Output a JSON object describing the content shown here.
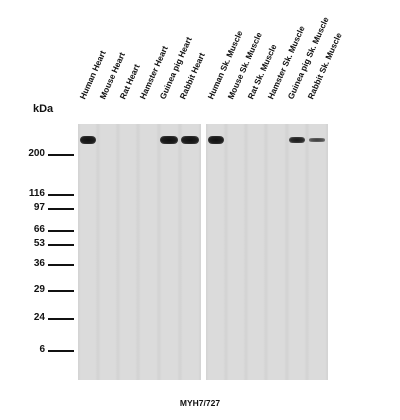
{
  "blot": {
    "lanes": [
      {
        "label": "Human Heart",
        "panel": 1,
        "band": "strong"
      },
      {
        "label": "Mouse Heart",
        "panel": 1,
        "band": "none"
      },
      {
        "label": "Rat Heart",
        "panel": 1,
        "band": "none"
      },
      {
        "label": "Hamster Heart",
        "panel": 1,
        "band": "none"
      },
      {
        "label": "Guinea pig Heart",
        "panel": 1,
        "band": "strong"
      },
      {
        "label": "Rabbit Heart",
        "panel": 1,
        "band": "strong"
      },
      {
        "label": "Human Sk. Muscle",
        "panel": 2,
        "band": "strong"
      },
      {
        "label": "Mouse Sk. Muscle",
        "panel": 2,
        "band": "none"
      },
      {
        "label": "Rat Sk. Muscle",
        "panel": 2,
        "band": "none"
      },
      {
        "label": "Hamster Sk. Muscle",
        "panel": 2,
        "band": "none"
      },
      {
        "label": "Guinea pig Sk. Muscle",
        "panel": 2,
        "band": "medium"
      },
      {
        "label": "Rabbit Sk. Muscle",
        "panel": 2,
        "band": "light"
      }
    ],
    "kda_label": "kDa",
    "markers": [
      "200",
      "116",
      "97",
      "66",
      "53",
      "36",
      "29",
      "24",
      "6"
    ],
    "caption": "MYH7/727"
  }
}
